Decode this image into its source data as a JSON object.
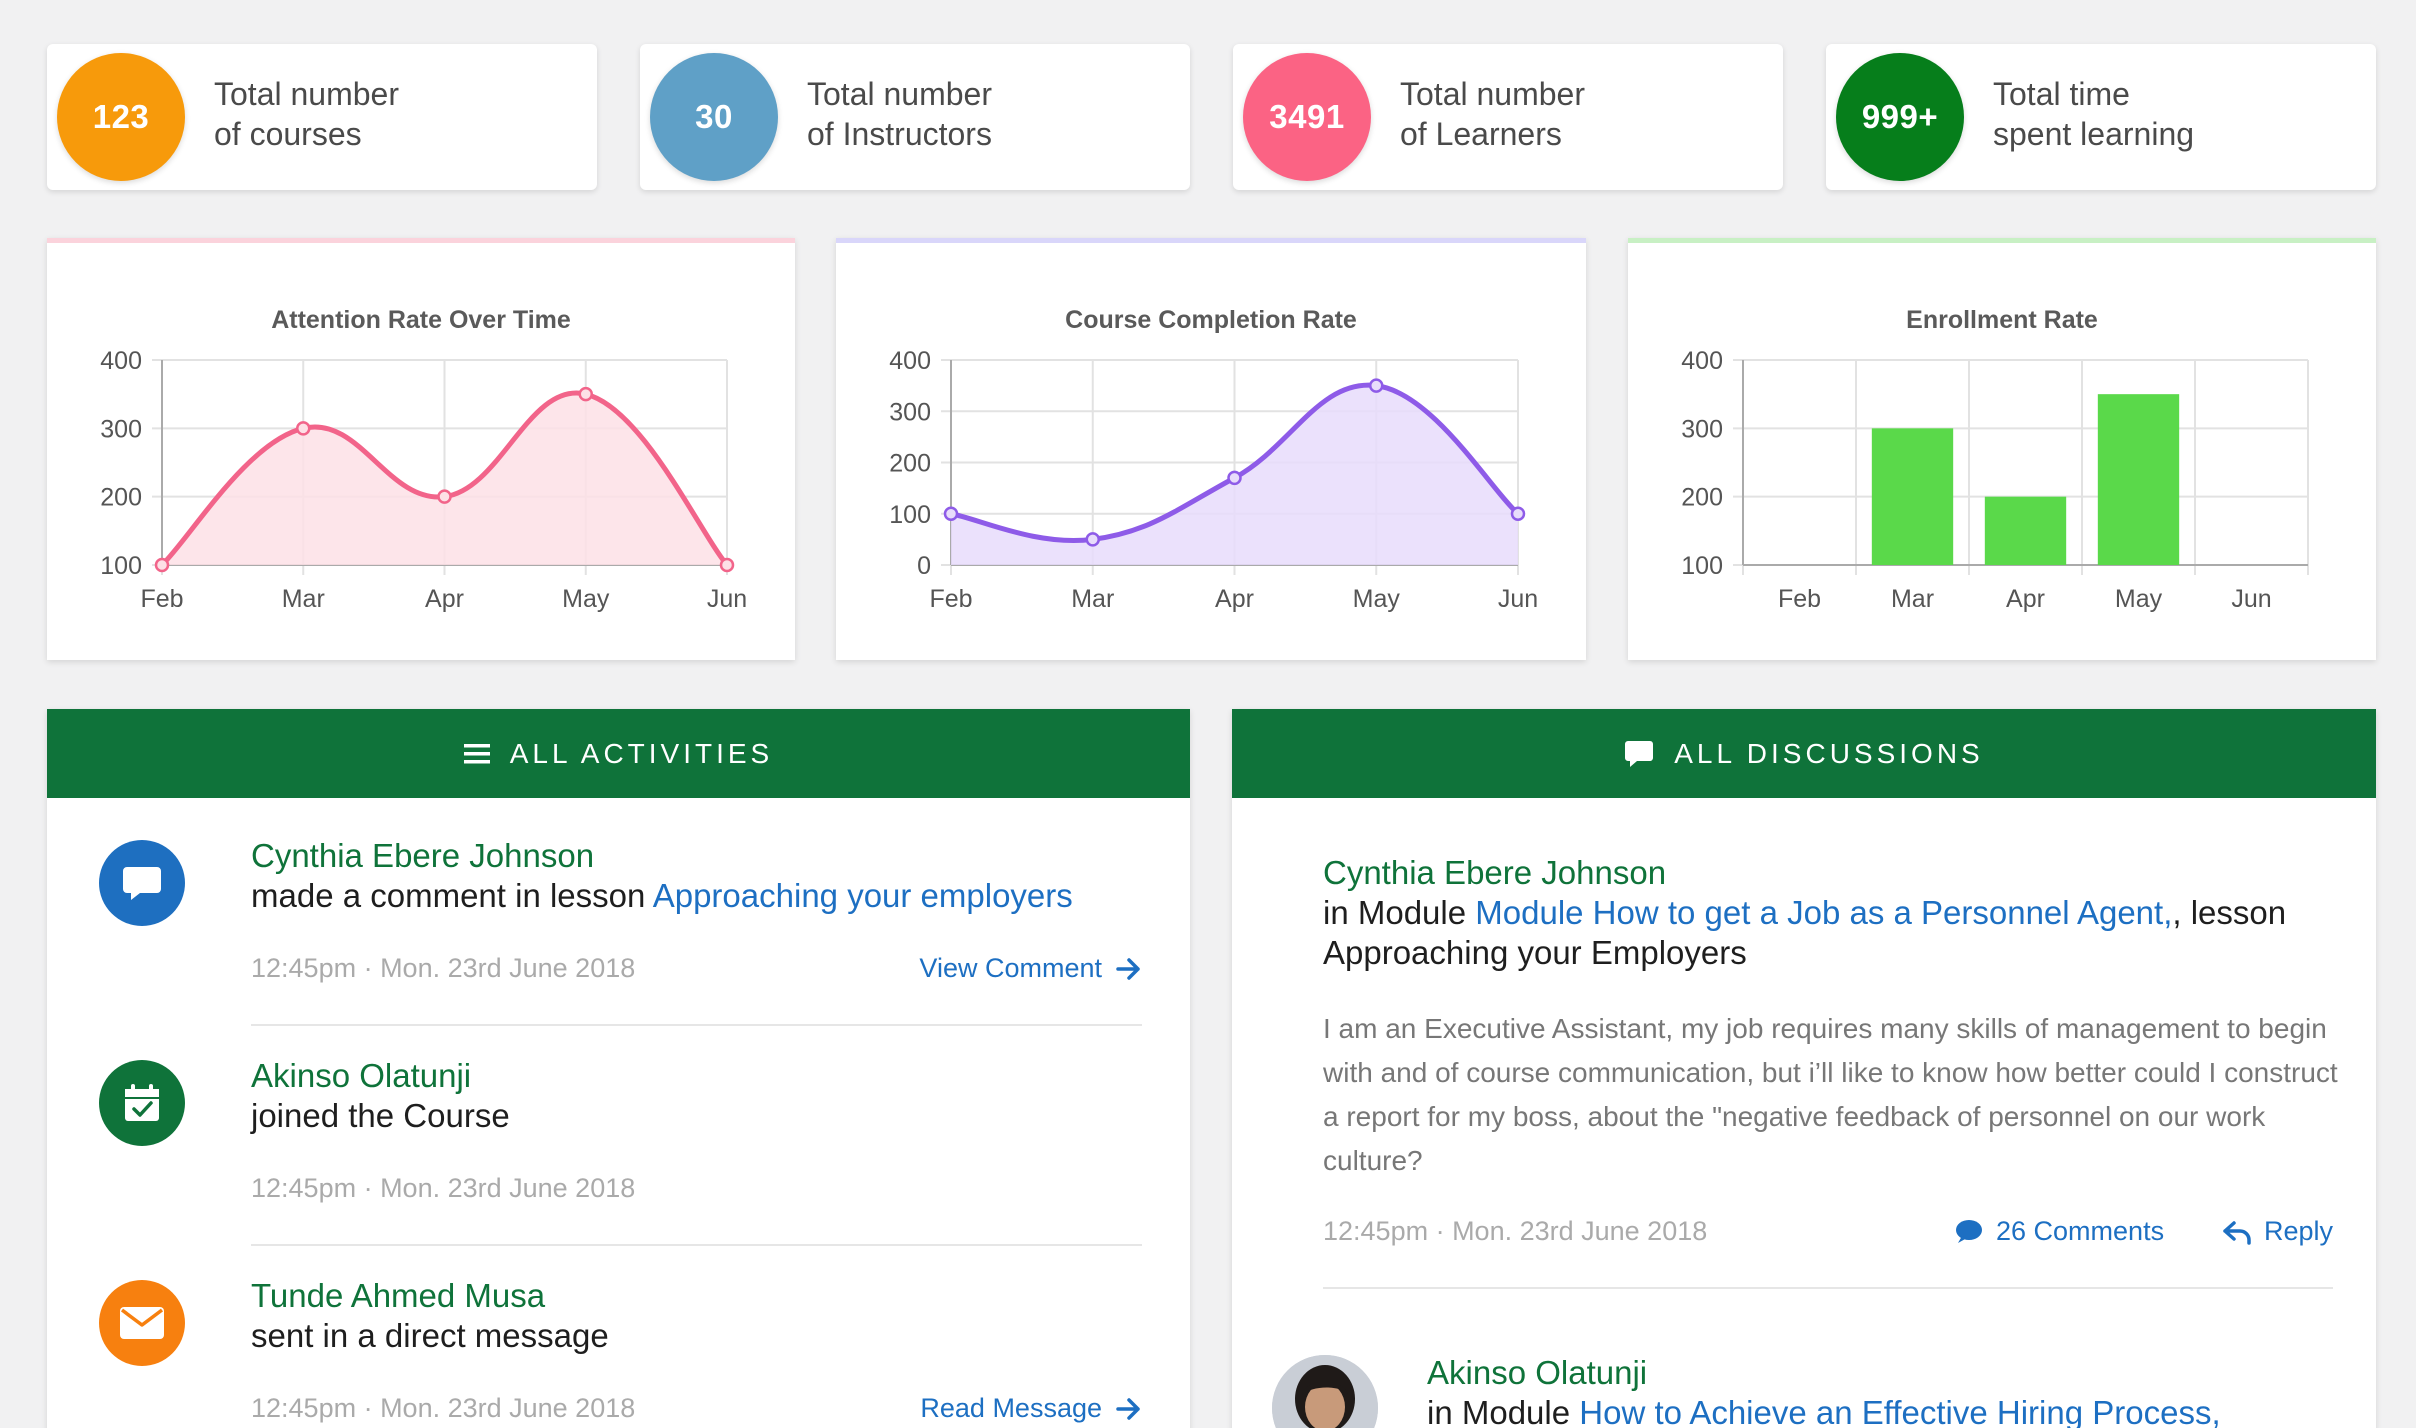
{
  "stats": [
    {
      "value": "123",
      "line1": "Total number",
      "line2": "of courses",
      "color": "#f79a0b"
    },
    {
      "value": "30",
      "line1": "Total number",
      "line2": "of Instructors",
      "color": "#5fa0c7"
    },
    {
      "value": "3491",
      "line1": "Total number",
      "line2": "of Learners",
      "color": "#fb6384"
    },
    {
      "value": "999+",
      "line1": "Total time",
      "line2": "spent learning",
      "color": "#067e1b"
    }
  ],
  "chart_data": [
    {
      "type": "area",
      "title": "Attention Rate Over Time",
      "categories": [
        "Feb",
        "Mar",
        "Apr",
        "May",
        "Jun"
      ],
      "values": [
        100,
        300,
        200,
        350,
        100
      ],
      "y_ticks": [
        "400",
        "300",
        "200",
        "100"
      ],
      "ylim": [
        100,
        400
      ],
      "grid": true,
      "color": "#f2648a",
      "fill": "#fde0e6"
    },
    {
      "type": "area",
      "title": "Course Completion Rate",
      "categories": [
        "Feb",
        "Mar",
        "Apr",
        "May",
        "Jun"
      ],
      "values": [
        100,
        50,
        170,
        350,
        100
      ],
      "y_ticks": [
        "400",
        "300",
        "200",
        "100",
        "0"
      ],
      "ylim": [
        0,
        400
      ],
      "grid": true,
      "color": "#8e5be8",
      "fill": "#e8dcfb"
    },
    {
      "type": "bar",
      "title": "Enrollment Rate",
      "categories": [
        "Feb",
        "Mar",
        "Apr",
        "May",
        "Jun"
      ],
      "values": [
        null,
        300,
        200,
        350,
        null
      ],
      "y_ticks": [
        "400",
        "300",
        "200",
        "100"
      ],
      "ylim": [
        100,
        400
      ],
      "grid": true,
      "color": "#5ad94a"
    }
  ],
  "activities": {
    "header": "ALL ACTIVITIES",
    "items": [
      {
        "name": "Cynthia Ebere Johnson",
        "text": "made a comment in lesson ",
        "link": "Approaching your employers",
        "time": "12:45pm · Mon. 23rd June 2018",
        "action": "View Comment",
        "icon": "chat-bubble-icon",
        "color": "#1e6fc0"
      },
      {
        "name": "Akinso Olatunji",
        "text": "joined the Course",
        "link": "",
        "time": "12:45pm · Mon. 23rd June 2018",
        "action": "",
        "icon": "calendar-check-icon",
        "color": "#0f733a"
      },
      {
        "name": "Tunde Ahmed Musa",
        "text": "sent in a direct message",
        "link": "",
        "time": "12:45pm · Mon. 23rd June 2018",
        "action": "Read Message",
        "icon": "envelope-icon",
        "color": "#f7800f"
      }
    ]
  },
  "discussions": {
    "header": "ALL DISCUSSIONS",
    "first": {
      "name": "Cynthia Ebere Johnson",
      "prefix": "in Module ",
      "module": "Module How to get a Job as a Personnel Agent,",
      "mid": ", lesson",
      "lesson": "Approaching your Employers",
      "body": "I am an Executive Assistant, my job requires many skills of management to begin with and of course communication, but i’ll like to know how better could I construct a report for my boss, about the \"negative feedback of personnel on our work culture?",
      "time": "12:45pm · Mon. 23rd June 2018",
      "comments": "26 Comments",
      "reply": "Reply"
    },
    "second": {
      "name": "Akinso Olatunji",
      "prefix": "in Module ",
      "module": "How to Achieve an Effective Hiring Process,"
    }
  }
}
